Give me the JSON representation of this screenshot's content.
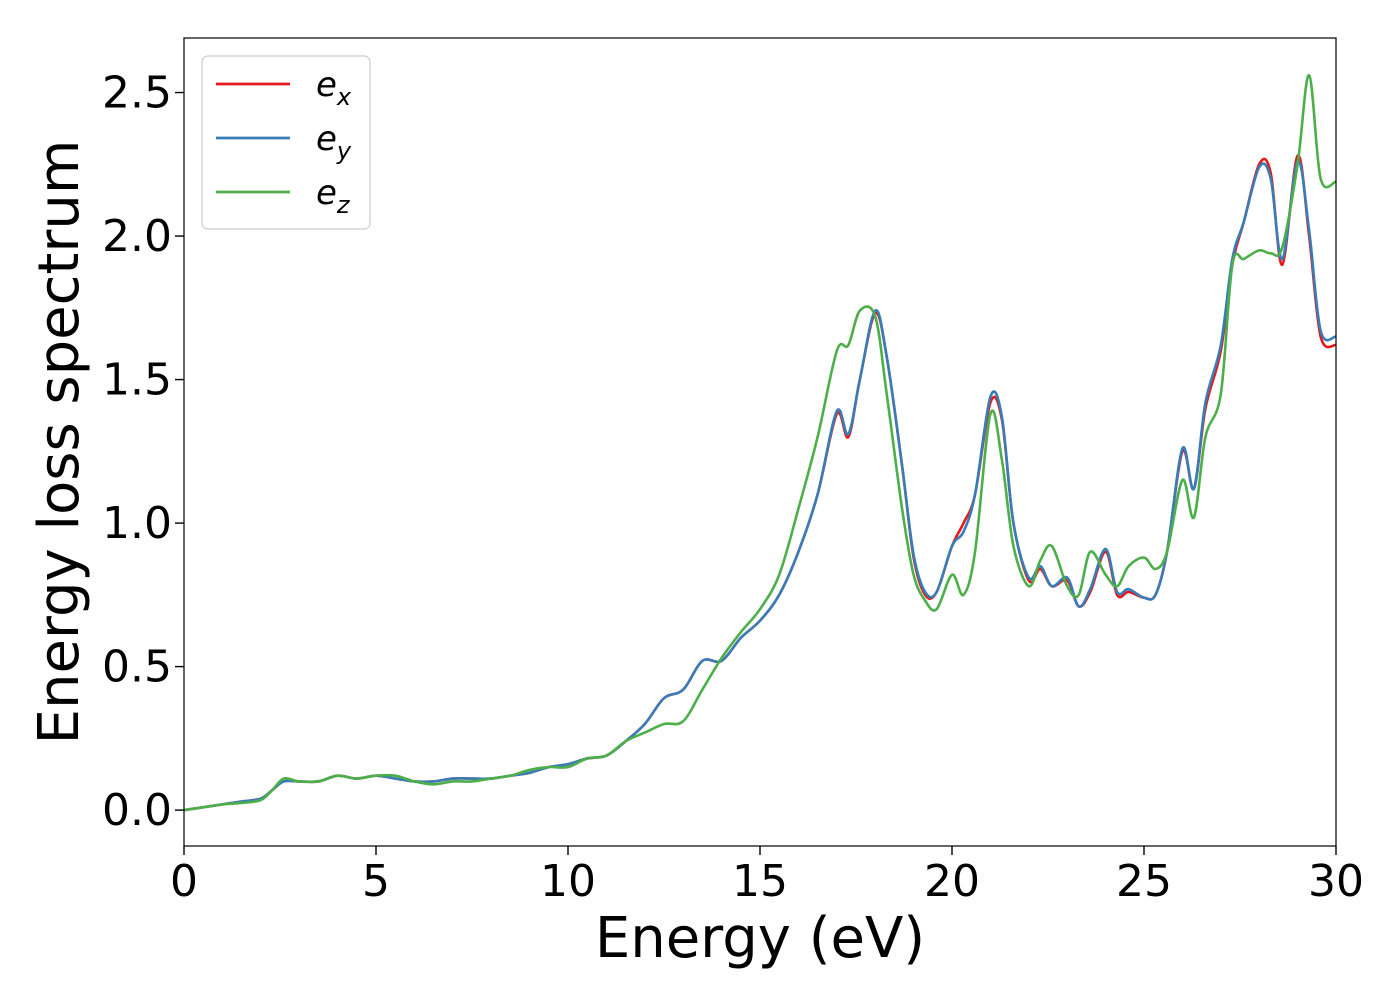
{
  "chart_data": {
    "type": "line",
    "xlabel": "Energy (eV)",
    "ylabel": "Energy loss spectrum",
    "xlim": [
      0,
      30
    ],
    "ylim": [
      -0.125,
      2.69
    ],
    "xticks": [
      0,
      5,
      10,
      15,
      20,
      25,
      30
    ],
    "xtick_labels": [
      "0",
      "5",
      "10",
      "15",
      "20",
      "25",
      "30"
    ],
    "yticks": [
      0.0,
      0.5,
      1.0,
      1.5,
      2.0,
      2.5
    ],
    "ytick_labels": [
      "0.0",
      "0.5",
      "1.0",
      "1.5",
      "2.0",
      "2.5"
    ],
    "grid": false,
    "legend_position": "top-left",
    "series": [
      {
        "name": "e",
        "subscript": "x",
        "color": "#e41a1c",
        "x": [
          0,
          0.5,
          1,
          1.5,
          2,
          2.3,
          2.6,
          3,
          3.5,
          4,
          4.5,
          5,
          5.5,
          6,
          6.5,
          7,
          7.5,
          8,
          8.5,
          9,
          9.5,
          10,
          10.5,
          11,
          11.5,
          12,
          12.5,
          13,
          13.5,
          14,
          14.5,
          15,
          15.5,
          16,
          16.5,
          17,
          17.3,
          17.6,
          18,
          18.3,
          18.7,
          19,
          19.3,
          19.6,
          20,
          20.3,
          20.6,
          21,
          21.3,
          21.6,
          22,
          22.3,
          22.6,
          23,
          23.3,
          23.6,
          24,
          24.3,
          24.6,
          25,
          25.3,
          25.6,
          26,
          26.3,
          26.6,
          27,
          27.3,
          27.6,
          28,
          28.3,
          28.6,
          29,
          29.3,
          29.6,
          30
        ],
        "values": [
          0,
          0.01,
          0.02,
          0.03,
          0.04,
          0.07,
          0.1,
          0.1,
          0.1,
          0.12,
          0.11,
          0.12,
          0.11,
          0.1,
          0.1,
          0.11,
          0.11,
          0.11,
          0.12,
          0.13,
          0.15,
          0.16,
          0.18,
          0.19,
          0.24,
          0.3,
          0.39,
          0.42,
          0.52,
          0.52,
          0.6,
          0.66,
          0.75,
          0.9,
          1.1,
          1.38,
          1.3,
          1.5,
          1.73,
          1.58,
          1.2,
          0.88,
          0.75,
          0.76,
          0.92,
          1.0,
          1.1,
          1.42,
          1.36,
          1.0,
          0.8,
          0.84,
          0.78,
          0.8,
          0.71,
          0.76,
          0.9,
          0.75,
          0.76,
          0.74,
          0.75,
          0.9,
          1.25,
          1.12,
          1.4,
          1.6,
          1.9,
          2.05,
          2.25,
          2.22,
          1.9,
          2.28,
          2.0,
          1.65,
          1.62
        ]
      },
      {
        "name": "e",
        "subscript": "y",
        "color": "#377eb8",
        "x": [
          0,
          0.5,
          1,
          1.5,
          2,
          2.3,
          2.6,
          3,
          3.5,
          4,
          4.5,
          5,
          5.5,
          6,
          6.5,
          7,
          7.5,
          8,
          8.5,
          9,
          9.5,
          10,
          10.5,
          11,
          11.5,
          12,
          12.5,
          13,
          13.5,
          14,
          14.5,
          15,
          15.5,
          16,
          16.5,
          17,
          17.3,
          17.6,
          18,
          18.3,
          18.7,
          19,
          19.3,
          19.6,
          20,
          20.3,
          20.6,
          21,
          21.3,
          21.6,
          22,
          22.3,
          22.6,
          23,
          23.3,
          23.6,
          24,
          24.3,
          24.6,
          25,
          25.3,
          25.6,
          26,
          26.3,
          26.6,
          27,
          27.3,
          27.6,
          28,
          28.3,
          28.6,
          29,
          29.3,
          29.6,
          30
        ],
        "values": [
          0,
          0.01,
          0.02,
          0.03,
          0.04,
          0.07,
          0.1,
          0.1,
          0.1,
          0.12,
          0.11,
          0.12,
          0.11,
          0.1,
          0.1,
          0.11,
          0.11,
          0.11,
          0.12,
          0.13,
          0.15,
          0.16,
          0.18,
          0.19,
          0.24,
          0.3,
          0.39,
          0.42,
          0.52,
          0.52,
          0.6,
          0.66,
          0.75,
          0.9,
          1.1,
          1.39,
          1.31,
          1.5,
          1.74,
          1.58,
          1.2,
          0.89,
          0.76,
          0.76,
          0.92,
          0.97,
          1.1,
          1.44,
          1.37,
          1.0,
          0.81,
          0.85,
          0.78,
          0.81,
          0.71,
          0.77,
          0.91,
          0.76,
          0.77,
          0.74,
          0.75,
          0.9,
          1.26,
          1.12,
          1.42,
          1.62,
          1.92,
          2.05,
          2.24,
          2.2,
          1.92,
          2.26,
          2.02,
          1.67,
          1.65
        ]
      },
      {
        "name": "e",
        "subscript": "z",
        "color": "#4daf4a",
        "x": [
          0,
          0.5,
          1,
          1.5,
          2,
          2.3,
          2.6,
          3,
          3.5,
          4,
          4.5,
          5,
          5.5,
          6,
          6.5,
          7,
          7.5,
          8,
          8.5,
          9,
          9.5,
          10,
          10.5,
          11,
          11.5,
          12,
          12.5,
          13,
          13.5,
          14,
          14.5,
          15,
          15.5,
          16,
          16.5,
          17,
          17.3,
          17.6,
          18,
          18.3,
          18.7,
          19,
          19.3,
          19.6,
          20,
          20.3,
          20.6,
          21,
          21.3,
          21.6,
          22,
          22.3,
          22.6,
          23,
          23.3,
          23.6,
          24,
          24.3,
          24.6,
          25,
          25.3,
          25.6,
          26,
          26.3,
          26.6,
          27,
          27.3,
          27.6,
          28,
          28.3,
          28.6,
          29,
          29.3,
          29.6,
          30
        ],
        "values": [
          0,
          0.01,
          0.02,
          0.025,
          0.035,
          0.07,
          0.11,
          0.1,
          0.1,
          0.12,
          0.11,
          0.12,
          0.12,
          0.1,
          0.09,
          0.1,
          0.1,
          0.11,
          0.12,
          0.14,
          0.15,
          0.15,
          0.18,
          0.19,
          0.24,
          0.27,
          0.3,
          0.31,
          0.42,
          0.53,
          0.62,
          0.7,
          0.82,
          1.05,
          1.3,
          1.6,
          1.62,
          1.74,
          1.72,
          1.45,
          1.05,
          0.82,
          0.73,
          0.7,
          0.82,
          0.75,
          0.9,
          1.38,
          1.22,
          0.92,
          0.78,
          0.87,
          0.92,
          0.78,
          0.75,
          0.9,
          0.82,
          0.78,
          0.85,
          0.88,
          0.84,
          0.9,
          1.15,
          1.02,
          1.3,
          1.45,
          1.9,
          1.92,
          1.95,
          1.94,
          1.96,
          2.25,
          2.56,
          2.2,
          2.19
        ]
      }
    ]
  }
}
